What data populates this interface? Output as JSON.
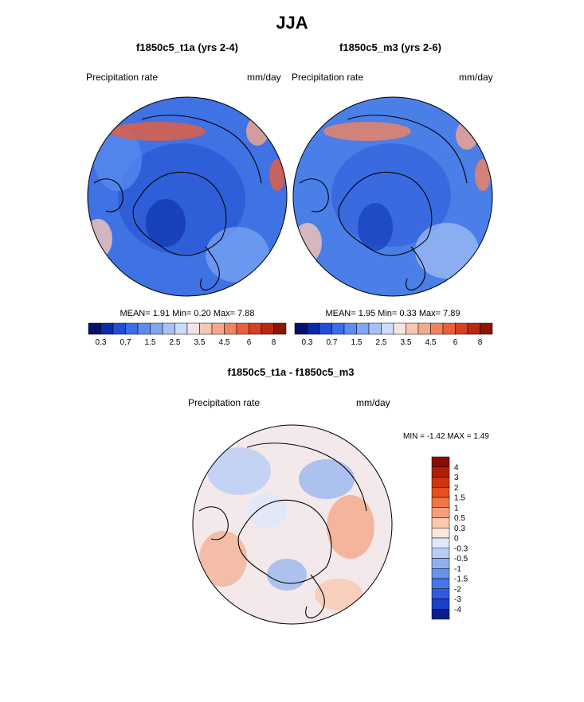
{
  "main_title": "JJA",
  "panels": [
    {
      "id": "left",
      "title": "f1850c5_t1a (yrs 2-4)",
      "variable": "Precipitation rate",
      "units": "mm/day",
      "stats": "MEAN=   1.91  Min=   0.20  Max=   7.88"
    },
    {
      "id": "right",
      "title": "f1850c5_m3 (yrs 2-6)",
      "variable": "Precipitation rate",
      "units": "mm/day",
      "stats": "MEAN=   1.95  Min=   0.33  Max=   7.89"
    },
    {
      "id": "diff",
      "title": "f1850c5_t1a - f1850c5_m3",
      "variable": "Precipitation rate",
      "units": "mm/day",
      "stats": "MIN =  -1.42 MAX =   1.49"
    }
  ],
  "colorbar_horizontal": {
    "colors": [
      "#08106e",
      "#0a2ba8",
      "#1f4fd8",
      "#3a6ee8",
      "#5b8cf0",
      "#7ea6f3",
      "#a6c2f6",
      "#cddcfa",
      "#f3e6e2",
      "#f7c6b4",
      "#f6a88c",
      "#f1845f",
      "#ea5e3a",
      "#d9401f",
      "#b82a10",
      "#8c1506"
    ],
    "tick_labels": [
      "0.3",
      "0.7",
      "1.5",
      "2.5",
      "3.5",
      "4.5",
      "6",
      "8"
    ]
  },
  "colorbar_vertical": {
    "colors": [
      "#8c0a04",
      "#b01e08",
      "#cf3410",
      "#e4501e",
      "#ef7448",
      "#f5a07c",
      "#f9c8b0",
      "#fbe6dc",
      "#dfe9fb",
      "#b8cdf6",
      "#8fb0f1",
      "#6a92ec",
      "#4676e6",
      "#2d5ce0",
      "#1840c8",
      "#0c1e8a"
    ],
    "tick_labels": [
      "4",
      "3",
      "2",
      "1.5",
      "1",
      "0.5",
      "0.3",
      "0",
      "-0.3",
      "-0.5",
      "-1",
      "-1.5",
      "-2",
      "-3",
      "-4"
    ]
  },
  "map_fill": {
    "left": "#3f72e3",
    "right": "#4a7fe7",
    "diff": "#f3e8ea"
  }
}
